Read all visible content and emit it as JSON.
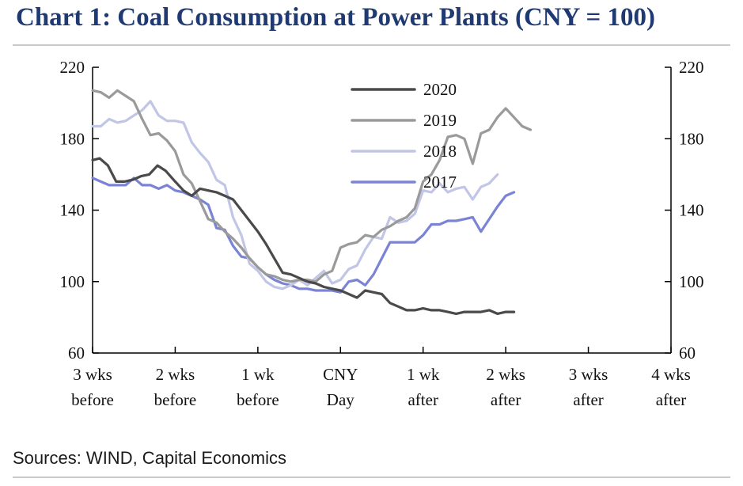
{
  "title": "Chart 1: Coal Consumption at Power Plants (CNY = 100)",
  "source": "Sources: WIND, Capital Economics",
  "chart_data": {
    "type": "line",
    "xlim": [
      -21,
      28
    ],
    "ylim": [
      60,
      220
    ],
    "yticks": [
      60,
      100,
      140,
      180,
      220
    ],
    "y_axes": [
      "left",
      "right"
    ],
    "grid": false,
    "legend_position": "top-center",
    "xticks": [
      {
        "x": -21,
        "line1": "3 wks",
        "line2": "before"
      },
      {
        "x": -14,
        "line1": "2 wks",
        "line2": "before"
      },
      {
        "x": -7,
        "line1": "1 wk",
        "line2": "before"
      },
      {
        "x": 0,
        "line1": "CNY",
        "line2": "Day"
      },
      {
        "x": 7,
        "line1": "1 wk",
        "line2": "after"
      },
      {
        "x": 14,
        "line1": "2 wks",
        "line2": "after"
      },
      {
        "x": 21,
        "line1": "3 wks",
        "line2": "after"
      },
      {
        "x": 28,
        "line1": "4 wks",
        "line2": "after"
      }
    ],
    "series": [
      {
        "name": "2020",
        "color": "#4a4a4a",
        "x": [
          -21,
          -20.4,
          -19.7,
          -19,
          -18.3,
          -17.6,
          -16.9,
          -16.2,
          -15.5,
          -14.8,
          -14,
          -13.3,
          -12.6,
          -11.9,
          -11.2,
          -10.5,
          -9.8,
          -9.1,
          -8.4,
          -7.7,
          -7,
          -6.3,
          -5.6,
          -4.9,
          -4.2,
          -3.5,
          -2.8,
          -2.1,
          -1.4,
          -0.7,
          0,
          0.7,
          1.4,
          2.1,
          2.8,
          3.5,
          4.2,
          4.9,
          5.6,
          6.3,
          7,
          7.7,
          8.4,
          9.1,
          9.8,
          10.5,
          11.2,
          11.9,
          12.6,
          13.3,
          14,
          14.7,
          15.4,
          16.1,
          16.8
        ],
        "values": [
          168,
          169,
          165,
          156,
          156,
          157,
          159,
          160,
          165,
          162,
          156,
          151,
          148,
          152,
          151,
          150,
          148,
          146,
          140,
          134,
          128,
          121,
          113,
          105,
          104,
          102,
          100,
          99,
          97,
          96,
          95,
          93,
          91,
          95,
          94,
          93,
          88,
          86,
          84,
          84,
          85,
          84,
          84,
          83,
          82,
          83,
          83,
          83,
          84,
          82,
          83,
          83,
          null,
          null,
          null
        ]
      },
      {
        "name": "2019",
        "color": "#9a9a9a",
        "x": [
          -21,
          -20.3,
          -19.6,
          -18.9,
          -18.2,
          -17.5,
          -16.8,
          -16.1,
          -15.4,
          -14.7,
          -14,
          -13.3,
          -12.6,
          -11.9,
          -11.2,
          -10.5,
          -9.8,
          -9.1,
          -8.4,
          -7.7,
          -7,
          -6.3,
          -5.6,
          -4.9,
          -4.2,
          -3.5,
          -2.8,
          -2.1,
          -1.4,
          -0.7,
          0,
          0.7,
          1.4,
          2.1,
          2.8,
          3.5,
          4.2,
          4.9,
          5.6,
          6.3,
          7,
          7.7,
          8.4,
          9.1,
          9.8,
          10.5,
          11.2,
          11.9,
          12.6,
          13.3,
          14,
          14.7,
          15.4,
          16.1,
          16.8,
          17.5,
          18.2,
          18.9,
          19.6,
          20.3,
          21,
          21.7,
          22.4,
          23.1,
          23.8,
          24.5,
          25.2,
          25.9,
          26.6,
          27.3,
          28
        ],
        "values": [
          207,
          206,
          203,
          207,
          204,
          201,
          191,
          182,
          183,
          179,
          173,
          160,
          155,
          145,
          135,
          133,
          128,
          124,
          119,
          113,
          108,
          104,
          103,
          101,
          100,
          101,
          101,
          100,
          104,
          106,
          119,
          121,
          122,
          126,
          125,
          129,
          131,
          134,
          136,
          141,
          156,
          160,
          168,
          181,
          182,
          180,
          166,
          183,
          185,
          192,
          197,
          192,
          187,
          185,
          null,
          null,
          null,
          null,
          null,
          null,
          null,
          null,
          null,
          null,
          null,
          null,
          null,
          null,
          null,
          null,
          null
        ]
      },
      {
        "name": "2018",
        "color": "#c2c6e6",
        "x": [
          -21,
          -20.3,
          -19.6,
          -18.9,
          -18.2,
          -17.5,
          -16.8,
          -16.1,
          -15.4,
          -14.7,
          -14,
          -13.3,
          -12.6,
          -11.9,
          -11.2,
          -10.5,
          -9.8,
          -9.1,
          -8.4,
          -7.7,
          -7,
          -6.3,
          -5.6,
          -4.9,
          -4.2,
          -3.5,
          -2.8,
          -2.1,
          -1.4,
          -0.7,
          0,
          0.7,
          1.4,
          2.1,
          2.8,
          3.5,
          4.2,
          4.9,
          5.6,
          6.3,
          7,
          7.7,
          8.4,
          9.1,
          9.8,
          10.5,
          11.2,
          11.9,
          12.6,
          13.3,
          14,
          14.7,
          15.4,
          16.1,
          16.8,
          17.5,
          18.2,
          18.9,
          19.6,
          20.3,
          21,
          21.7,
          22.4,
          23.1,
          23.8,
          24.5,
          25.2,
          25.9,
          26.6,
          27.3,
          28
        ],
        "values": [
          187,
          187,
          191,
          189,
          190,
          193,
          196,
          201,
          193,
          190,
          190,
          189,
          178,
          172,
          167,
          157,
          154,
          136,
          126,
          110,
          106,
          100,
          97,
          96,
          98,
          101,
          98,
          102,
          106,
          99,
          101,
          107,
          109,
          118,
          125,
          124,
          136,
          133,
          134,
          138,
          151,
          150,
          155,
          150,
          152,
          153,
          146,
          153,
          155,
          160,
          null,
          null,
          null,
          null,
          null,
          null,
          null,
          null,
          null,
          null,
          null,
          null,
          null,
          null,
          null,
          null,
          null,
          null,
          null,
          null,
          null
        ]
      },
      {
        "name": "2017",
        "color": "#7b83d4",
        "x": [
          -21,
          -20.3,
          -19.6,
          -18.9,
          -18.2,
          -17.5,
          -16.8,
          -16.1,
          -15.4,
          -14.7,
          -14,
          -13.3,
          -12.6,
          -11.9,
          -11.2,
          -10.5,
          -9.8,
          -9.1,
          -8.4,
          -7.7,
          -7,
          -6.3,
          -5.6,
          -4.9,
          -4.2,
          -3.5,
          -2.8,
          -2.1,
          -1.4,
          -0.7,
          0,
          0.7,
          1.4,
          2.1,
          2.8,
          3.5,
          4.2,
          4.9,
          5.6,
          6.3,
          7,
          7.7,
          8.4,
          9.1,
          9.8,
          10.5,
          11.2,
          11.9,
          12.6,
          13.3,
          14,
          14.7,
          15.4,
          16.1,
          16.8,
          17.5,
          18.2,
          18.9,
          19.6,
          20.3,
          21,
          21.7,
          22.4,
          23.1,
          23.8,
          24.5,
          25.2,
          25.9,
          26.6,
          27.3,
          28
        ],
        "values": [
          158,
          156,
          154,
          154,
          154,
          158,
          154,
          154,
          152,
          154,
          151,
          150,
          148,
          146,
          143,
          130,
          129,
          120,
          114,
          113,
          108,
          104,
          101,
          99,
          98,
          96,
          96,
          95,
          95,
          95,
          94,
          100,
          101,
          98,
          104,
          113,
          122,
          122,
          122,
          122,
          126,
          132,
          132,
          134,
          134,
          135,
          136,
          128,
          135,
          142,
          148,
          150,
          null,
          null,
          null,
          null,
          null,
          null,
          null,
          null,
          null,
          null,
          null,
          null,
          null,
          null,
          null,
          null,
          null,
          null,
          null
        ]
      }
    ]
  }
}
